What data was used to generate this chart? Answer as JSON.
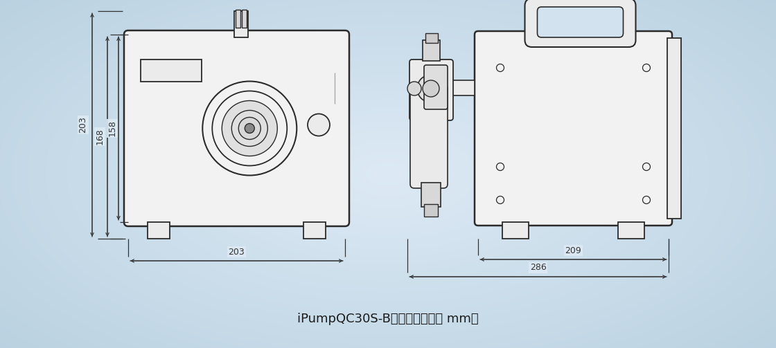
{
  "title": "iPumpQC30S-B尺寸图（单位： mm）",
  "bg_color": "#c8dce8",
  "bg_center_color": "#ddeaf4",
  "line_color": "#2a2a2a",
  "dim_color": "#333333",
  "body_fill": "#f2f2f2",
  "body_fill2": "#ebebeb",
  "fig_width": 11.2,
  "fig_height": 5.03,
  "dim_203_h": "203",
  "dim_168_h": "168",
  "dim_158_h": "158",
  "dim_203_w": "203",
  "dim_209_w": "209",
  "dim_286_w": "286"
}
